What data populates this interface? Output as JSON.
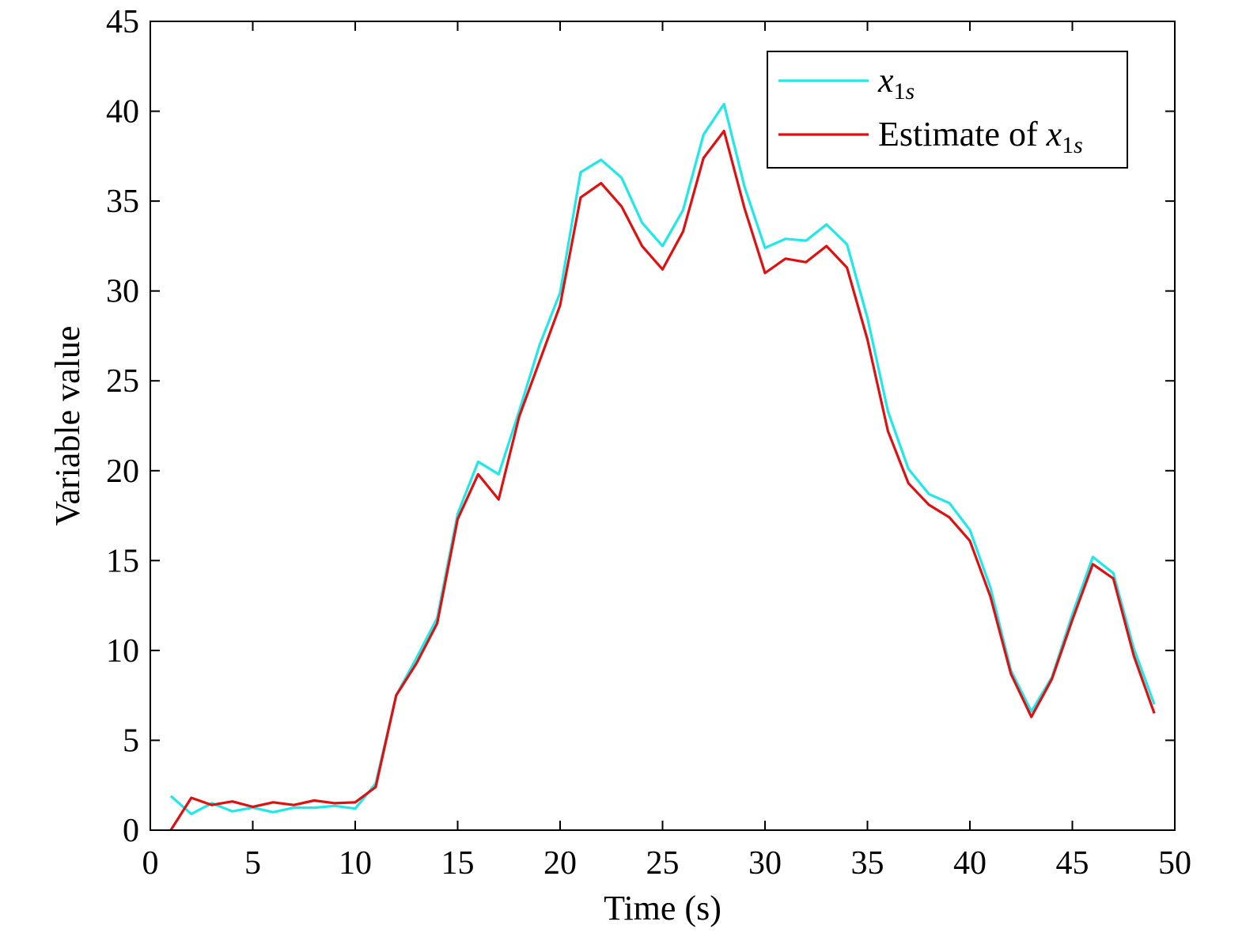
{
  "chart_data": {
    "type": "line",
    "xlabel": "Time (s)",
    "ylabel": "Variable value",
    "xlim": [
      0,
      50
    ],
    "ylim": [
      0,
      45
    ],
    "xticks": [
      0,
      5,
      10,
      15,
      20,
      25,
      30,
      35,
      40,
      45,
      50
    ],
    "yticks": [
      0,
      5,
      10,
      15,
      20,
      25,
      30,
      35,
      40,
      45
    ],
    "xtick_labels": [
      "0",
      "5",
      "10",
      "15",
      "20",
      "25",
      "30",
      "35",
      "40",
      "45",
      "50"
    ],
    "ytick_labels": [
      "0",
      "5",
      "10",
      "15",
      "20",
      "25",
      "30",
      "35",
      "40",
      "45"
    ],
    "grid": false,
    "legend_position": "top-right",
    "x": [
      1,
      2,
      3,
      4,
      5,
      6,
      7,
      8,
      9,
      10,
      11,
      12,
      13,
      14,
      15,
      16,
      17,
      18,
      19,
      20,
      21,
      22,
      23,
      24,
      25,
      26,
      27,
      28,
      29,
      30,
      31,
      32,
      33,
      34,
      35,
      36,
      37,
      38,
      39,
      40,
      41,
      42,
      43,
      44,
      45,
      46,
      47,
      48,
      49
    ],
    "series": [
      {
        "name": "x_1s",
        "legend": {
          "base": "x",
          "sub": "1",
          "sub_italic": "s"
        },
        "color": "#1fe8e8",
        "values": [
          1.9,
          0.9,
          1.5,
          1.05,
          1.25,
          1.0,
          1.25,
          1.25,
          1.35,
          1.2,
          2.6,
          7.5,
          9.6,
          11.8,
          17.6,
          20.5,
          19.8,
          23.3,
          27.0,
          29.9,
          36.6,
          37.3,
          36.3,
          33.8,
          32.5,
          34.5,
          38.7,
          40.4,
          35.8,
          32.4,
          32.9,
          32.8,
          33.7,
          32.6,
          28.5,
          23.3,
          20.1,
          18.7,
          18.2,
          16.7,
          13.5,
          8.9,
          6.6,
          8.5,
          12.0,
          15.2,
          14.3,
          10.1,
          7.0
        ]
      },
      {
        "name": "Estimate of x_1s",
        "legend": {
          "prefix": "Estimate of ",
          "base": "x",
          "sub": "1",
          "sub_italic": "s"
        },
        "color": "#e01010",
        "values": [
          0.0,
          1.8,
          1.4,
          1.6,
          1.3,
          1.55,
          1.4,
          1.65,
          1.5,
          1.55,
          2.4,
          7.5,
          9.3,
          11.5,
          17.3,
          19.8,
          18.4,
          23.0,
          26.1,
          29.2,
          35.2,
          36.0,
          34.7,
          32.5,
          31.2,
          33.3,
          37.4,
          38.9,
          34.6,
          31.0,
          31.8,
          31.6,
          32.5,
          31.3,
          27.3,
          22.2,
          19.3,
          18.1,
          17.4,
          16.1,
          13.0,
          8.7,
          6.3,
          8.4,
          11.7,
          14.8,
          14.0,
          9.7,
          6.5
        ]
      }
    ]
  }
}
